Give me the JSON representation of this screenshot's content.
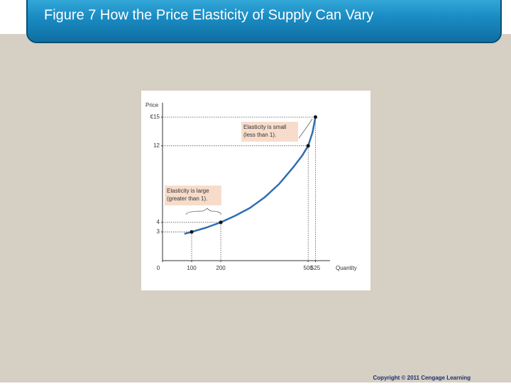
{
  "slide": {
    "title": "Figure 7 How the Price Elasticity of Supply Can Vary",
    "copyright": "Copyright © 2011 Cengage Learning"
  },
  "chart_data": {
    "type": "line",
    "y_label": "Price",
    "x_label": "Quantity",
    "xlim": [
      0,
      575
    ],
    "ylim": [
      0,
      16.5
    ],
    "xticks": [
      0,
      100,
      200,
      500,
      525
    ],
    "yticks": [
      3,
      4,
      12,
      {
        "value": 15,
        "label": "€15"
      }
    ],
    "series": [
      {
        "color": "#2f6db3",
        "x": [
          75,
          100,
          150,
          200,
          250,
          300,
          350,
          400,
          450,
          480,
          500,
          515,
          525
        ],
        "values": [
          2.8,
          3,
          3.45,
          4,
          4.7,
          5.5,
          6.6,
          8,
          9.8,
          11,
          12,
          13.4,
          15
        ]
      }
    ],
    "points": {
      "color": "#111111",
      "x": [
        100,
        200,
        500,
        525
      ],
      "values": [
        3,
        4,
        12,
        15
      ]
    },
    "annotations": [
      {
        "lines": [
          "Elasticity is small",
          "(less than 1)."
        ]
      },
      {
        "lines": [
          "Elasticity is large",
          "(greater than 1)."
        ]
      }
    ]
  }
}
